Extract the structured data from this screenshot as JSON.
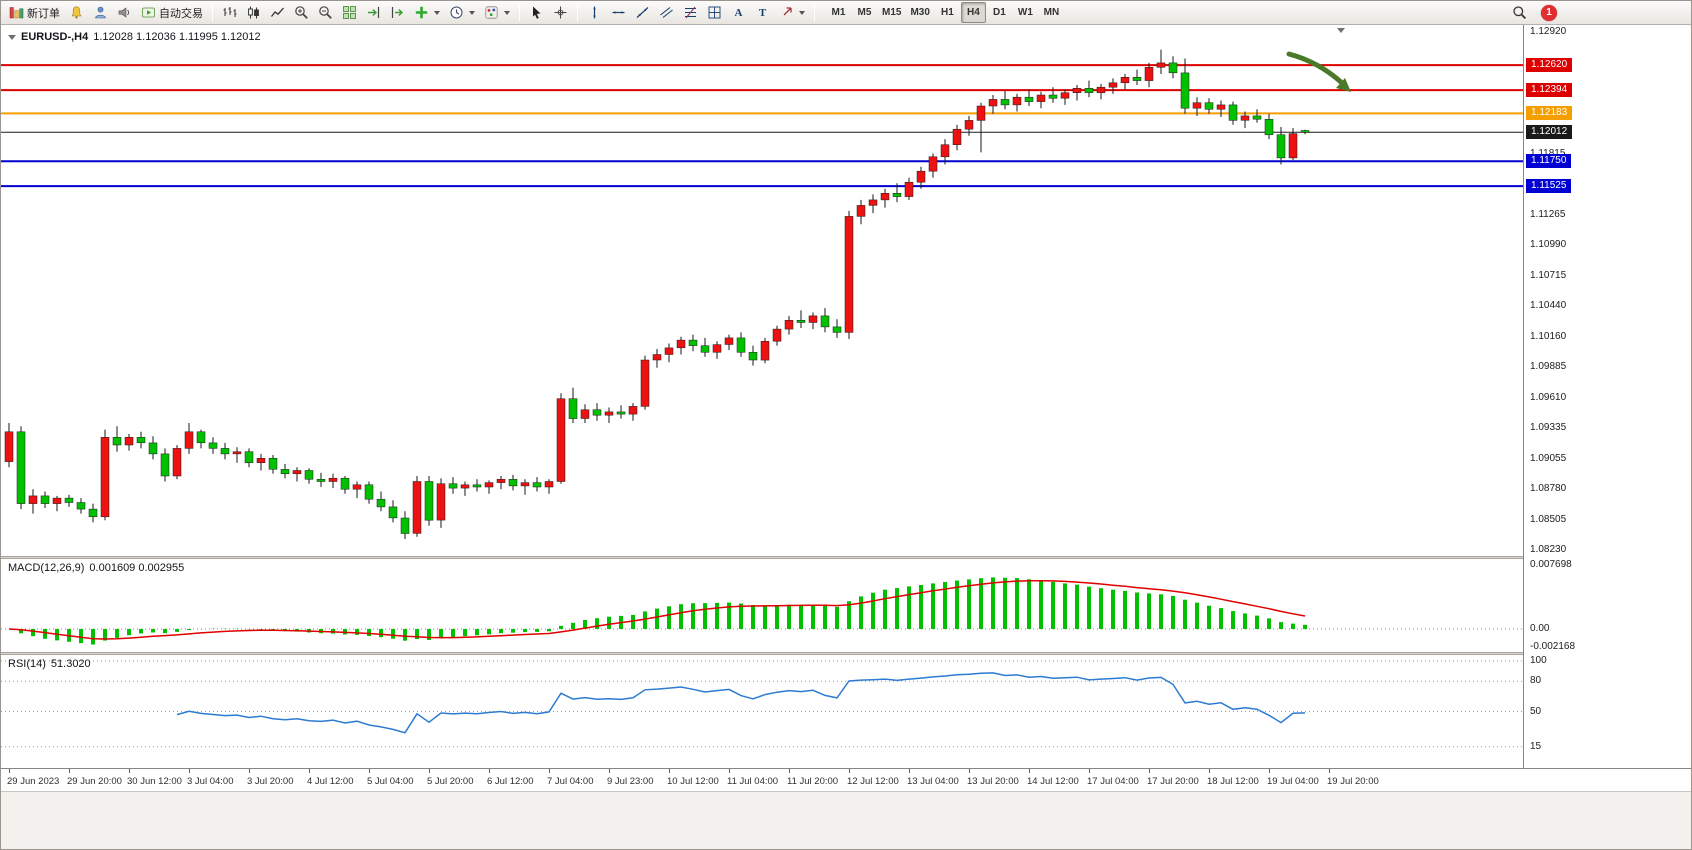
{
  "toolbar": {
    "new_order_label": "新订单",
    "autotrading_label": "自动交易",
    "text_tool": "A",
    "text_label_tool": "T",
    "timeframes": [
      "M1",
      "M5",
      "M15",
      "M30",
      "H1",
      "H4",
      "D1",
      "W1",
      "MN"
    ],
    "active_timeframe": "H4",
    "notification_count": "1",
    "icon_buttons": [
      "new-order",
      "alerts",
      "account",
      "news",
      "autotrading",
      "bar-chart",
      "candlestick-chart",
      "line-chart",
      "zoom-in",
      "zoom-out",
      "tile-windows",
      "auto-scroll",
      "chart-shift",
      "indicators",
      "periods",
      "templates",
      "cursor",
      "crosshair",
      "vertical-line",
      "horizontal-line",
      "trendline",
      "equidistant-channel",
      "fibonacci",
      "grid",
      "text",
      "text-label",
      "arrows",
      "search",
      "notification"
    ]
  },
  "chart_data": {
    "type": "candlestick",
    "symbol_period": "EURUSD-,H4",
    "ohlc_text": "1.12028 1.12036 1.11995 1.12012",
    "ohlc_display": {
      "open": "1.12028",
      "high": "1.12036",
      "low": "1.11995",
      "close": "1.12012"
    },
    "up_color": "#ee1111",
    "down_color": "#00c000",
    "wick_color": "#1a1a1a",
    "y_axis": {
      "max": 1.1292,
      "min": 1.0823,
      "ticks": [
        "1.12920",
        "1.11815",
        "1.11265",
        "1.10990",
        "1.10715",
        "1.10440",
        "1.10160",
        "1.09885",
        "1.09610",
        "1.09335",
        "1.09055",
        "1.08780",
        "1.08505",
        "1.08230"
      ]
    },
    "x_labels": [
      "29 Jun 2023",
      "29 Jun 20:00",
      "30 Jun 12:00",
      "3 Jul 04:00",
      "3 Jul 20:00",
      "4 Jul 12:00",
      "5 Jul 04:00",
      "5 Jul 20:00",
      "6 Jul 12:00",
      "7 Jul 04:00",
      "9 Jul 23:00",
      "10 Jul 12:00",
      "11 Jul 04:00",
      "11 Jul 20:00",
      "12 Jul 12:00",
      "13 Jul 04:00",
      "13 Jul 20:00",
      "14 Jul 12:00",
      "17 Jul 04:00",
      "17 Jul 20:00",
      "18 Jul 12:00",
      "19 Jul 04:00",
      "19 Jul 20:00"
    ],
    "x_label_step": 5,
    "hlines": [
      {
        "label": "1.12620",
        "price": 1.1262,
        "color": "#dd0000",
        "width": 2
      },
      {
        "label": "1.12394",
        "price": 1.12394,
        "color": "#dd0000",
        "width": 2
      },
      {
        "label": "1.12183",
        "price": 1.12183,
        "color": "#f59e00",
        "width": 2
      },
      {
        "label": "1.12012",
        "price": 1.12012,
        "color": "#1a1a1a",
        "width": 1,
        "current": true
      },
      {
        "label": "1.11750",
        "price": 1.1175,
        "color": "#0000d2",
        "width": 2
      },
      {
        "label": "1.11525",
        "price": 1.11525,
        "color": "#0000d2",
        "width": 2
      }
    ],
    "candles": [
      [
        1.0903,
        1.0938,
        1.0898,
        1.093
      ],
      [
        1.093,
        1.0935,
        1.086,
        1.0865
      ],
      [
        1.0865,
        1.0878,
        1.0856,
        1.0872
      ],
      [
        1.0872,
        1.0876,
        1.0861,
        1.0865
      ],
      [
        1.0865,
        1.0872,
        1.0858,
        1.087
      ],
      [
        1.087,
        1.0873,
        1.0862,
        1.0866
      ],
      [
        1.0866,
        1.087,
        1.0856,
        1.086
      ],
      [
        1.086,
        1.0865,
        1.0848,
        1.0853
      ],
      [
        1.0853,
        1.0932,
        1.085,
        1.0925
      ],
      [
        1.0925,
        1.0935,
        1.0912,
        1.0918
      ],
      [
        1.0918,
        1.0928,
        1.0913,
        1.0925
      ],
      [
        1.0925,
        1.093,
        1.0915,
        1.092
      ],
      [
        1.092,
        1.0926,
        1.0905,
        1.091
      ],
      [
        1.091,
        1.0915,
        1.0885,
        1.089
      ],
      [
        1.089,
        1.0918,
        1.0887,
        1.0915
      ],
      [
        1.0915,
        1.0938,
        1.091,
        1.093
      ],
      [
        1.093,
        1.0932,
        1.0915,
        1.092
      ],
      [
        1.092,
        1.0925,
        1.091,
        1.0915
      ],
      [
        1.0915,
        1.092,
        1.0905,
        1.091
      ],
      [
        1.091,
        1.0916,
        1.0902,
        1.0912
      ],
      [
        1.0912,
        1.0915,
        1.0898,
        1.0902
      ],
      [
        1.0902,
        1.091,
        1.0895,
        1.0906
      ],
      [
        1.0906,
        1.0909,
        1.0892,
        1.0896
      ],
      [
        1.0896,
        1.0901,
        1.0888,
        1.0892
      ],
      [
        1.0892,
        1.0898,
        1.0885,
        1.0895
      ],
      [
        1.0895,
        1.0897,
        1.0883,
        1.0887
      ],
      [
        1.0887,
        1.0893,
        1.088,
        1.0885
      ],
      [
        1.0885,
        1.0892,
        1.0879,
        1.0888
      ],
      [
        1.0888,
        1.089,
        1.0874,
        1.0878
      ],
      [
        1.0878,
        1.0885,
        1.087,
        1.0882
      ],
      [
        1.0882,
        1.0885,
        1.0865,
        1.0869
      ],
      [
        1.0869,
        1.0876,
        1.0858,
        1.0862
      ],
      [
        1.0862,
        1.0868,
        1.0848,
        1.0852
      ],
      [
        1.0852,
        1.0858,
        1.0833,
        1.0838
      ],
      [
        1.0838,
        1.089,
        1.0835,
        1.0885
      ],
      [
        1.0885,
        1.089,
        1.0845,
        1.085
      ],
      [
        1.085,
        1.0888,
        1.0843,
        1.0883
      ],
      [
        1.0883,
        1.0889,
        1.0874,
        1.0879
      ],
      [
        1.0879,
        1.0885,
        1.0872,
        1.0882
      ],
      [
        1.0882,
        1.0887,
        1.0876,
        1.088
      ],
      [
        1.088,
        1.0886,
        1.0874,
        1.0884
      ],
      [
        1.0884,
        1.089,
        1.0878,
        1.0887
      ],
      [
        1.0887,
        1.0891,
        1.0877,
        1.0881
      ],
      [
        1.0881,
        1.0887,
        1.0873,
        1.0884
      ],
      [
        1.0884,
        1.0889,
        1.0876,
        1.088
      ],
      [
        1.088,
        1.0887,
        1.0874,
        1.0885
      ],
      [
        1.0885,
        1.0965,
        1.0883,
        1.096
      ],
      [
        1.096,
        1.097,
        1.0938,
        1.0942
      ],
      [
        1.0942,
        1.0955,
        1.0938,
        1.095
      ],
      [
        1.095,
        1.0956,
        1.094,
        1.0945
      ],
      [
        1.0945,
        1.0952,
        1.0938,
        1.0948
      ],
      [
        1.0948,
        1.0954,
        1.0942,
        1.0946
      ],
      [
        1.0946,
        1.0956,
        1.094,
        1.0953
      ],
      [
        1.0953,
        1.0999,
        1.095,
        1.0995
      ],
      [
        1.0995,
        1.1005,
        1.0988,
        1.1
      ],
      [
        1.1,
        1.101,
        1.0993,
        1.1006
      ],
      [
        1.1006,
        1.1016,
        1.1,
        1.1013
      ],
      [
        1.1013,
        1.1018,
        1.1003,
        1.1008
      ],
      [
        1.1008,
        1.1015,
        1.0998,
        1.1002
      ],
      [
        1.1002,
        1.1012,
        1.0996,
        1.1009
      ],
      [
        1.1009,
        1.1018,
        1.1004,
        1.1015
      ],
      [
        1.1015,
        1.102,
        1.0998,
        1.1002
      ],
      [
        1.1002,
        1.1008,
        1.099,
        1.0995
      ],
      [
        1.0995,
        1.1015,
        1.0992,
        1.1012
      ],
      [
        1.1012,
        1.1026,
        1.1008,
        1.1023
      ],
      [
        1.1023,
        1.1035,
        1.1018,
        1.1031
      ],
      [
        1.1031,
        1.104,
        1.1024,
        1.1029
      ],
      [
        1.1029,
        1.1038,
        1.1023,
        1.1035
      ],
      [
        1.1035,
        1.1042,
        1.102,
        1.1025
      ],
      [
        1.1025,
        1.1032,
        1.1015,
        1.102
      ],
      [
        1.102,
        1.113,
        1.1014,
        1.1125
      ],
      [
        1.1125,
        1.114,
        1.1118,
        1.1135
      ],
      [
        1.1135,
        1.1145,
        1.1128,
        1.114
      ],
      [
        1.114,
        1.115,
        1.1133,
        1.1146
      ],
      [
        1.1146,
        1.1155,
        1.1138,
        1.1143
      ],
      [
        1.1143,
        1.116,
        1.114,
        1.1156
      ],
      [
        1.1156,
        1.117,
        1.115,
        1.1166
      ],
      [
        1.1166,
        1.1182,
        1.116,
        1.1179
      ],
      [
        1.1179,
        1.1195,
        1.1172,
        1.119
      ],
      [
        1.119,
        1.1208,
        1.1185,
        1.1204
      ],
      [
        1.1204,
        1.1216,
        1.1198,
        1.1212
      ],
      [
        1.1212,
        1.1228,
        1.1183,
        1.1225
      ],
      [
        1.1225,
        1.1235,
        1.1218,
        1.1231
      ],
      [
        1.1231,
        1.1239,
        1.1222,
        1.1226
      ],
      [
        1.1226,
        1.1236,
        1.122,
        1.1233
      ],
      [
        1.1233,
        1.124,
        1.1225,
        1.1229
      ],
      [
        1.1229,
        1.1238,
        1.1223,
        1.1235
      ],
      [
        1.1235,
        1.1242,
        1.1228,
        1.1232
      ],
      [
        1.1232,
        1.124,
        1.1226,
        1.1237
      ],
      [
        1.1237,
        1.1244,
        1.123,
        1.1241
      ],
      [
        1.1241,
        1.1248,
        1.1233,
        1.1237
      ],
      [
        1.1237,
        1.1245,
        1.1231,
        1.1242
      ],
      [
        1.1242,
        1.125,
        1.1236,
        1.1246
      ],
      [
        1.1246,
        1.1254,
        1.124,
        1.1251
      ],
      [
        1.1251,
        1.1258,
        1.1244,
        1.1248
      ],
      [
        1.1248,
        1.1264,
        1.1242,
        1.126
      ],
      [
        1.126,
        1.1276,
        1.1254,
        1.1264
      ],
      [
        1.1264,
        1.127,
        1.125,
        1.1255
      ],
      [
        1.1255,
        1.1268,
        1.1218,
        1.1223
      ],
      [
        1.1223,
        1.1233,
        1.1216,
        1.1228
      ],
      [
        1.1228,
        1.1232,
        1.1218,
        1.1222
      ],
      [
        1.1222,
        1.123,
        1.1215,
        1.1226
      ],
      [
        1.1226,
        1.1229,
        1.1208,
        1.1212
      ],
      [
        1.1212,
        1.122,
        1.1205,
        1.1216
      ],
      [
        1.1216,
        1.1222,
        1.121,
        1.1213
      ],
      [
        1.1213,
        1.1218,
        1.1195,
        1.1199
      ],
      [
        1.1199,
        1.1206,
        1.1172,
        1.1178
      ],
      [
        1.1178,
        1.1205,
        1.1176,
        1.12
      ],
      [
        1.12028,
        1.12036,
        1.11995,
        1.12012
      ]
    ],
    "indicators": {
      "macd": {
        "label": "MACD(12,26,9)",
        "values": "0.001609 0.002955",
        "params": [
          12,
          26,
          9
        ],
        "histogram_color": "#00c000",
        "signal_color": "#e00000",
        "range_max": 0.007698,
        "range_min": -0.002168,
        "scale": {
          "max": "0.007698",
          "zero": "0.00",
          "min": "-0.002168"
        }
      },
      "rsi": {
        "label": "RSI(14)",
        "value": "51.3020",
        "period": 14,
        "color": "#2d7bd2",
        "levels": [
          100,
          80,
          50,
          15
        ]
      }
    },
    "annotation_arrow": {
      "color": "#4a7a28"
    }
  }
}
